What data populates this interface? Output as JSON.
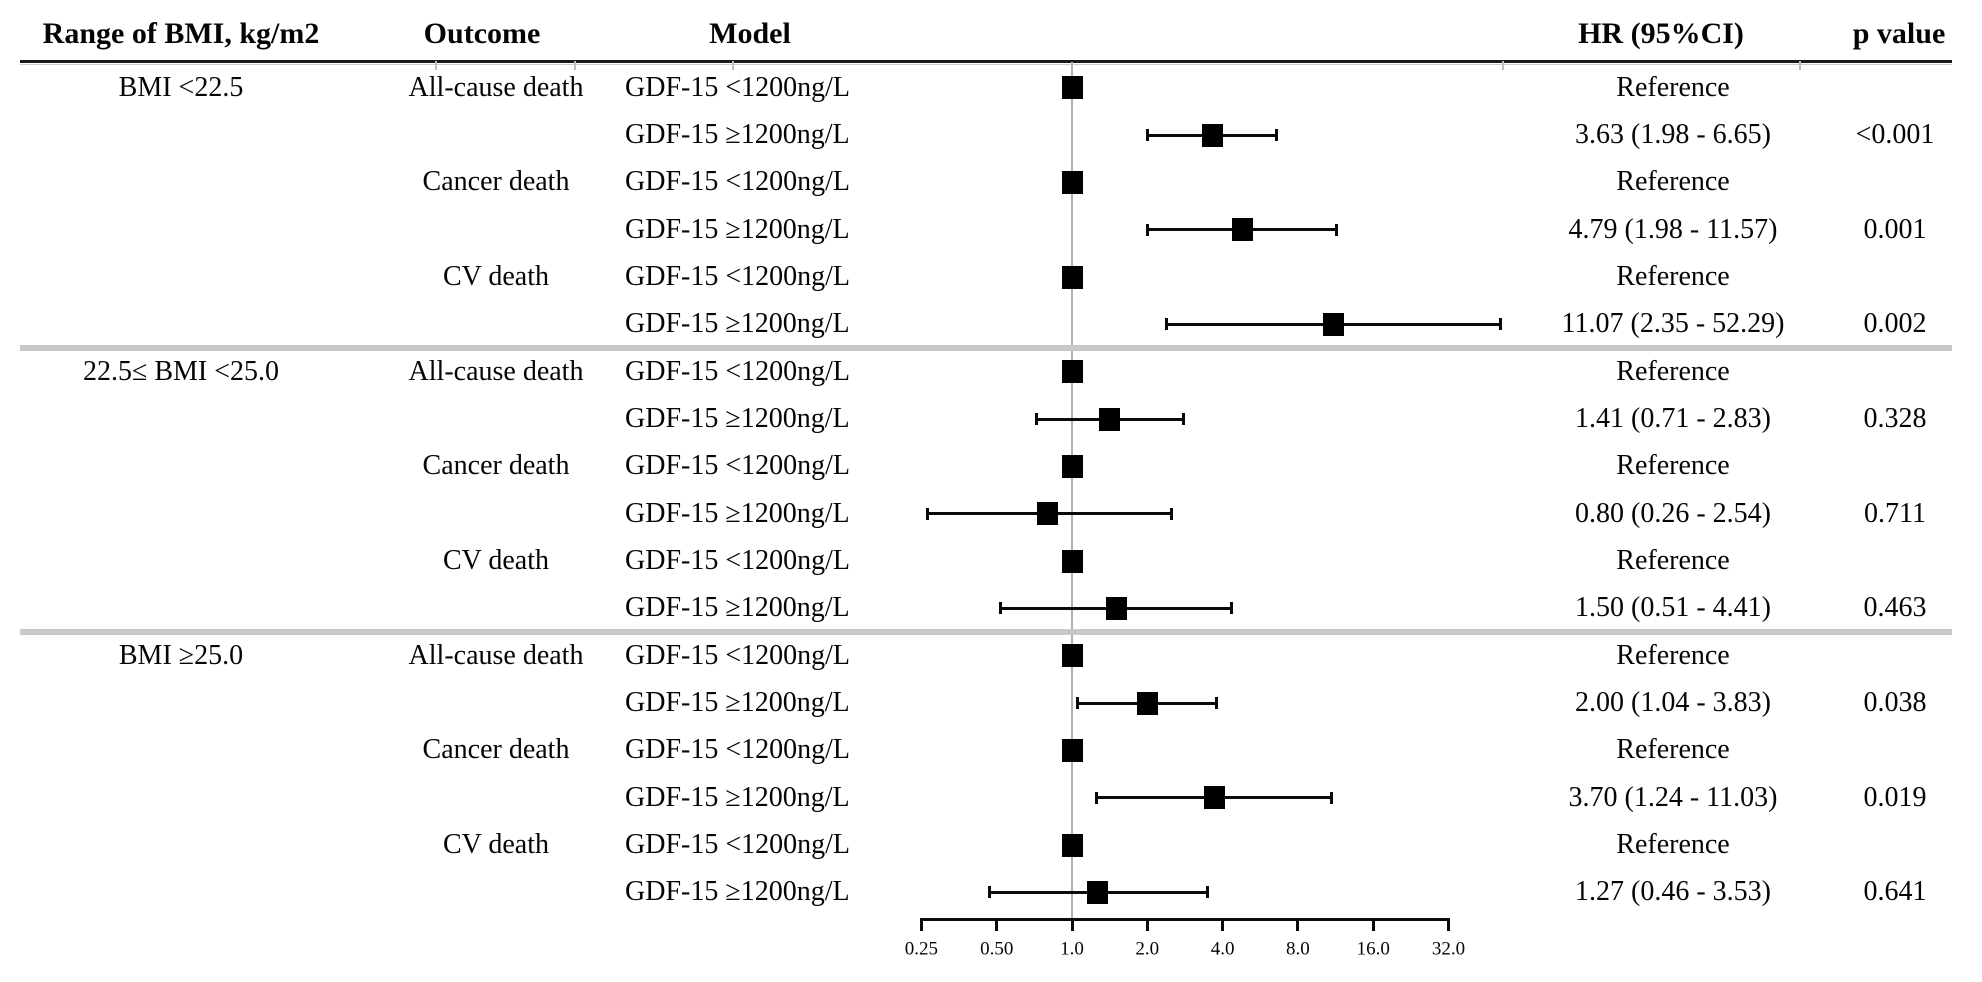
{
  "header": {
    "bmi": "Range of BMI, kg/m2",
    "outcome": "Outcome",
    "model": "Model",
    "hr": "HR (95%CI)",
    "p": "p value"
  },
  "axis": {
    "tick_labels": [
      "0.25",
      "0.50",
      "1.0",
      "2.0",
      "4.0",
      "8.0",
      "16.0",
      "32.0"
    ],
    "tick_values": [
      0.25,
      0.5,
      1.0,
      2.0,
      4.0,
      8.0,
      16.0,
      32.0
    ]
  },
  "colors": {
    "marker": "#000000",
    "text": "#050505",
    "reference_line": "#b2b2b2",
    "group_divider": "#c8c8c8",
    "header_rule": "#1a1a1a",
    "header_rule_shadow": "#cccccc"
  },
  "chart_data": {
    "type": "forest",
    "x_scale": "log2",
    "xlim": [
      0.25,
      32.0
    ],
    "reference_value": 1.0,
    "value_label": "HR (95%CI)",
    "groups": [
      {
        "label": "BMI <22.5",
        "outcomes": [
          {
            "label": "All-cause death",
            "rows": [
              {
                "model": "GDF-15 <1200ng/L",
                "hr_text": "Reference",
                "p": "",
                "hr": 1.0,
                "lo": null,
                "hi": null
              },
              {
                "model": "GDF-15 ≥1200ng/L",
                "hr_text": "3.63 (1.98 - 6.65)",
                "p": "<0.001",
                "hr": 3.63,
                "lo": 1.98,
                "hi": 6.65
              }
            ]
          },
          {
            "label": "Cancer death",
            "rows": [
              {
                "model": "GDF-15 <1200ng/L",
                "hr_text": "Reference",
                "p": "",
                "hr": 1.0,
                "lo": null,
                "hi": null
              },
              {
                "model": "GDF-15 ≥1200ng/L",
                "hr_text": "4.79 (1.98 - 11.57)",
                "p": "0.001",
                "hr": 4.79,
                "lo": 1.98,
                "hi": 11.57
              }
            ]
          },
          {
            "label": "CV death",
            "rows": [
              {
                "model": "GDF-15 <1200ng/L",
                "hr_text": "Reference",
                "p": "",
                "hr": 1.0,
                "lo": null,
                "hi": null
              },
              {
                "model": "GDF-15 ≥1200ng/L",
                "hr_text": "11.07 (2.35 - 52.29)",
                "p": "0.002",
                "hr": 11.07,
                "lo": 2.35,
                "hi": 52.29
              }
            ]
          }
        ]
      },
      {
        "label": "22.5≤ BMI <25.0",
        "outcomes": [
          {
            "label": "All-cause death",
            "rows": [
              {
                "model": "GDF-15 <1200ng/L",
                "hr_text": "Reference",
                "p": "",
                "hr": 1.0,
                "lo": null,
                "hi": null
              },
              {
                "model": "GDF-15 ≥1200ng/L",
                "hr_text": "1.41 (0.71 - 2.83)",
                "p": "0.328",
                "hr": 1.41,
                "lo": 0.71,
                "hi": 2.83
              }
            ]
          },
          {
            "label": "Cancer death",
            "rows": [
              {
                "model": "GDF-15 <1200ng/L",
                "hr_text": "Reference",
                "p": "",
                "hr": 1.0,
                "lo": null,
                "hi": null
              },
              {
                "model": "GDF-15 ≥1200ng/L",
                "hr_text": "0.80 (0.26 - 2.54)",
                "p": "0.711",
                "hr": 0.8,
                "lo": 0.26,
                "hi": 2.54
              }
            ]
          },
          {
            "label": "CV death",
            "rows": [
              {
                "model": "GDF-15 <1200ng/L",
                "hr_text": "Reference",
                "p": "",
                "hr": 1.0,
                "lo": null,
                "hi": null
              },
              {
                "model": "GDF-15 ≥1200ng/L",
                "hr_text": "1.50 (0.51 - 4.41)",
                "p": "0.463",
                "hr": 1.5,
                "lo": 0.51,
                "hi": 4.41
              }
            ]
          }
        ]
      },
      {
        "label": "BMI ≥25.0",
        "outcomes": [
          {
            "label": "All-cause death",
            "rows": [
              {
                "model": "GDF-15 <1200ng/L",
                "hr_text": "Reference",
                "p": "",
                "hr": 1.0,
                "lo": null,
                "hi": null
              },
              {
                "model": "GDF-15 ≥1200ng/L",
                "hr_text": "2.00 (1.04 - 3.83)",
                "p": "0.038",
                "hr": 2.0,
                "lo": 1.04,
                "hi": 3.83
              }
            ]
          },
          {
            "label": "Cancer death",
            "rows": [
              {
                "model": "GDF-15 <1200ng/L",
                "hr_text": "Reference",
                "p": "",
                "hr": 1.0,
                "lo": null,
                "hi": null
              },
              {
                "model": "GDF-15 ≥1200ng/L",
                "hr_text": "3.70 (1.24 - 11.03)",
                "p": "0.019",
                "hr": 3.7,
                "lo": 1.24,
                "hi": 11.03
              }
            ]
          },
          {
            "label": "CV death",
            "rows": [
              {
                "model": "GDF-15 <1200ng/L",
                "hr_text": "Reference",
                "p": "",
                "hr": 1.0,
                "lo": null,
                "hi": null
              },
              {
                "model": "GDF-15 ≥1200ng/L",
                "hr_text": "1.27 (0.46 - 3.53)",
                "p": "0.641",
                "hr": 1.27,
                "lo": 0.46,
                "hi": 3.53
              }
            ]
          }
        ]
      }
    ]
  }
}
